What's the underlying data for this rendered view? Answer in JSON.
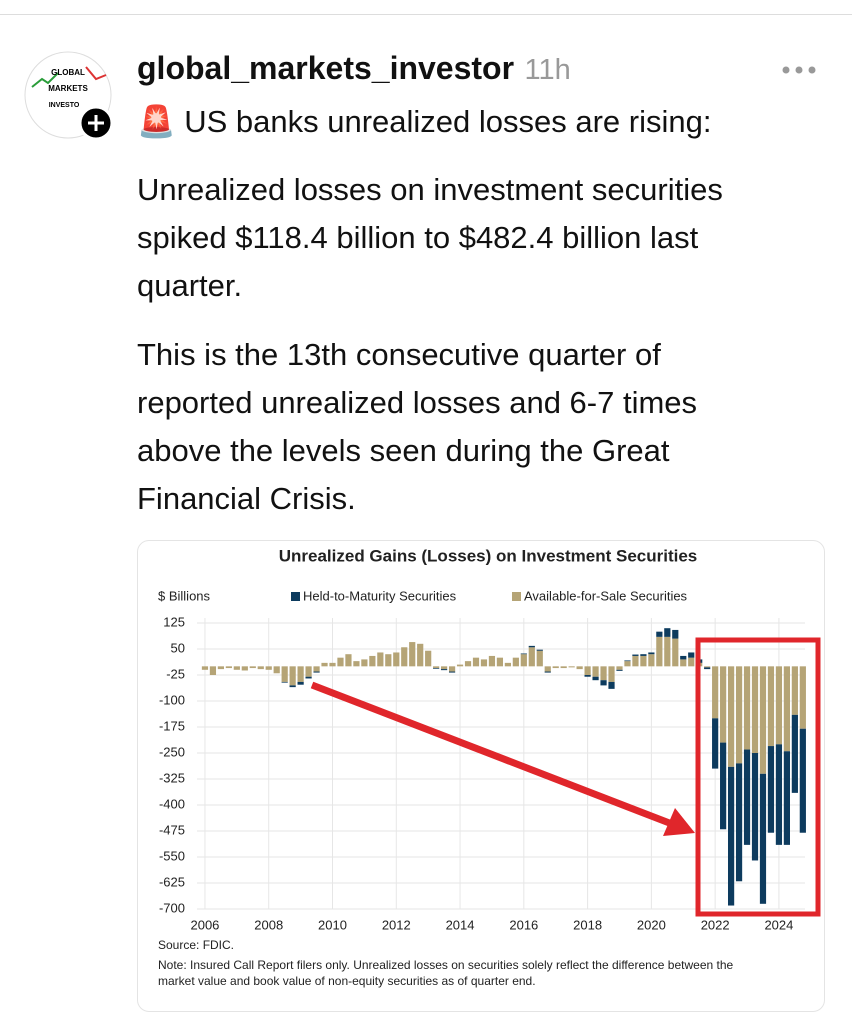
{
  "post": {
    "avatar_lines": [
      "GLOBAL",
      "MARKETS",
      "INVESTO"
    ],
    "username": "global_markets_investor",
    "time": "11h",
    "headline": "🚨 US banks unrealized losses are rising:",
    "paragraphs": [
      [
        "Unrealized losses on investment securities",
        "spiked $118.4 billion to $482.4 billion last",
        "quarter."
      ],
      [
        "This is the 13th consecutive quarter of",
        "reported unrealized losses and 6-7 times",
        "above the levels seen during the Great",
        "Financial Crisis."
      ]
    ]
  },
  "chart_data": {
    "type": "bar",
    "stacked": true,
    "title": "Unrealized Gains (Losses) on Investment Securities",
    "y_label": "$ Billions",
    "source": "Source: FDIC.",
    "note": [
      "Note: Insured Call Report filers only. Unrealized losses on securities solely reflect the difference between the",
      "market value and book value of non-equity securities as of quarter end."
    ],
    "x": [
      2006,
      2006.25,
      2006.5,
      2006.75,
      2007,
      2007.25,
      2007.5,
      2007.75,
      2008,
      2008.25,
      2008.5,
      2008.75,
      2009,
      2009.25,
      2009.5,
      2009.75,
      2010,
      2010.25,
      2010.5,
      2010.75,
      2011,
      2011.25,
      2011.5,
      2011.75,
      2012,
      2012.25,
      2012.5,
      2012.75,
      2013,
      2013.25,
      2013.5,
      2013.75,
      2014,
      2014.25,
      2014.5,
      2014.75,
      2015,
      2015.25,
      2015.5,
      2015.75,
      2016,
      2016.25,
      2016.5,
      2016.75,
      2017,
      2017.25,
      2017.5,
      2017.75,
      2018,
      2018.25,
      2018.5,
      2018.75,
      2019,
      2019.25,
      2019.5,
      2019.75,
      2020,
      2020.25,
      2020.5,
      2020.75,
      2021,
      2021.25,
      2021.5,
      2021.75,
      2022,
      2022.25,
      2022.5,
      2022.75,
      2023,
      2023.25,
      2023.5,
      2023.75,
      2024,
      2024.25,
      2024.5,
      2024.75
    ],
    "series": [
      {
        "name": "Available-for-Sale Securities",
        "color": "#b5a476",
        "values": [
          -10,
          -25,
          -8,
          -5,
          -10,
          -12,
          -5,
          -8,
          -10,
          -20,
          -45,
          -55,
          -45,
          -30,
          -15,
          10,
          10,
          25,
          35,
          15,
          20,
          30,
          40,
          35,
          40,
          55,
          70,
          65,
          45,
          -5,
          -8,
          -15,
          5,
          15,
          25,
          20,
          30,
          25,
          10,
          25,
          35,
          55,
          45,
          -15,
          -5,
          -5,
          -3,
          -8,
          -25,
          -30,
          -40,
          -45,
          -10,
          15,
          30,
          30,
          35,
          85,
          85,
          80,
          20,
          25,
          10,
          -3,
          -150,
          -220,
          -290,
          -280,
          -240,
          -250,
          -310,
          -230,
          -225,
          -245,
          -140,
          -180
        ]
      },
      {
        "name": "Held-to-Maturity Securities",
        "color": "#0d3b5e",
        "values": [
          0,
          0,
          0,
          0,
          0,
          0,
          0,
          0,
          0,
          0,
          -2,
          -5,
          -8,
          -5,
          -3,
          0,
          0,
          0,
          0,
          0,
          0,
          0,
          0,
          0,
          0,
          0,
          0,
          0,
          0,
          -2,
          -3,
          -3,
          0,
          0,
          0,
          0,
          0,
          0,
          0,
          0,
          2,
          4,
          3,
          -3,
          0,
          0,
          0,
          0,
          -5,
          -10,
          -15,
          -20,
          -3,
          2,
          4,
          5,
          5,
          15,
          25,
          25,
          10,
          15,
          10,
          -5,
          -145,
          -250,
          -400,
          -340,
          -275,
          -310,
          -375,
          -250,
          -290,
          -270,
          -225,
          -300
        ]
      }
    ],
    "xlim": [
      2005.6,
      2025.1
    ],
    "xticks": [
      2006,
      2008,
      2010,
      2012,
      2014,
      2016,
      2018,
      2020,
      2022,
      2024
    ],
    "ylim": [
      -700,
      125
    ],
    "yticks": [
      125,
      50,
      -25,
      -100,
      -175,
      -250,
      -325,
      -400,
      -475,
      -550,
      -625,
      -700
    ],
    "grid": true
  }
}
